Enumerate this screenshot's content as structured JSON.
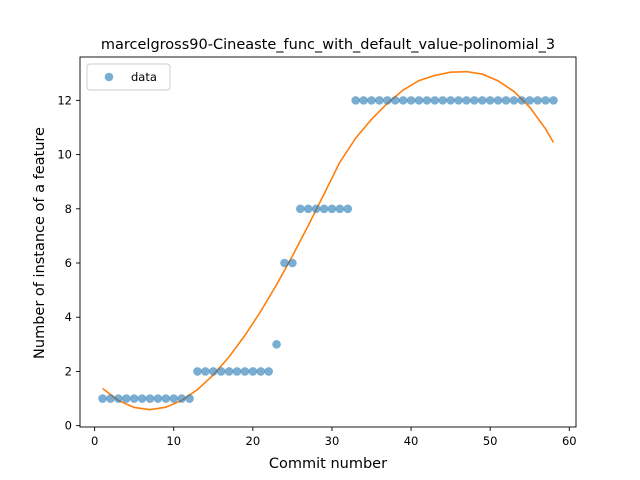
{
  "chart_data": {
    "type": "scatter",
    "title": "marcelgross90-Cineaste_func_with_default_value-polinomial_3",
    "xlabel": "Commit number",
    "ylabel": "Number of instance of a feature",
    "xlim": [
      -1.85,
      60.85
    ],
    "ylim": [
      -0.05,
      13.6
    ],
    "xticks": [
      0,
      10,
      20,
      30,
      40,
      50,
      60
    ],
    "yticks": [
      0,
      2,
      4,
      6,
      8,
      10,
      12
    ],
    "xtick_labels": [
      "0",
      "10",
      "20",
      "30",
      "40",
      "50",
      "60"
    ],
    "ytick_labels": [
      "0",
      "2",
      "4",
      "6",
      "8",
      "10",
      "12"
    ],
    "grid": false,
    "legend": {
      "position": "top-left",
      "entries": [
        "data"
      ]
    },
    "series": [
      {
        "name": "data",
        "kind": "scatter",
        "color": "#1f77b4",
        "x": [
          1,
          2,
          3,
          4,
          5,
          6,
          7,
          8,
          9,
          10,
          11,
          12,
          13,
          14,
          15,
          16,
          17,
          18,
          19,
          20,
          21,
          22,
          23,
          24,
          25,
          26,
          27,
          28,
          29,
          30,
          31,
          32,
          33,
          34,
          35,
          36,
          37,
          38,
          39,
          40,
          41,
          42,
          43,
          44,
          45,
          46,
          47,
          48,
          49,
          50,
          51,
          52,
          53,
          54,
          55,
          56,
          57,
          58
        ],
        "y": [
          1,
          1,
          1,
          1,
          1,
          1,
          1,
          1,
          1,
          1,
          1,
          1,
          2,
          2,
          2,
          2,
          2,
          2,
          2,
          2,
          2,
          2,
          3,
          6,
          6,
          8,
          8,
          8,
          8,
          8,
          8,
          8,
          12,
          12,
          12,
          12,
          12,
          12,
          12,
          12,
          12,
          12,
          12,
          12,
          12,
          12,
          12,
          12,
          12,
          12,
          12,
          12,
          12,
          12,
          12,
          12,
          12,
          12
        ]
      },
      {
        "kind": "line",
        "color": "#ff7f0e",
        "x": [
          1,
          3,
          5,
          7,
          9,
          11,
          13,
          15,
          17,
          19,
          21,
          23,
          25,
          27,
          29,
          31,
          33,
          35,
          37,
          39,
          41,
          43,
          45,
          47,
          49,
          51,
          53,
          55,
          57,
          58
        ],
        "y": [
          1.37,
          0.93,
          0.67,
          0.59,
          0.68,
          0.93,
          1.33,
          1.87,
          2.54,
          3.33,
          4.22,
          5.2,
          6.26,
          7.38,
          8.54,
          9.72,
          10.61,
          11.3,
          11.89,
          12.38,
          12.73,
          12.92,
          13.04,
          13.06,
          12.97,
          12.72,
          12.33,
          11.75,
          10.95,
          10.45
        ]
      }
    ]
  }
}
